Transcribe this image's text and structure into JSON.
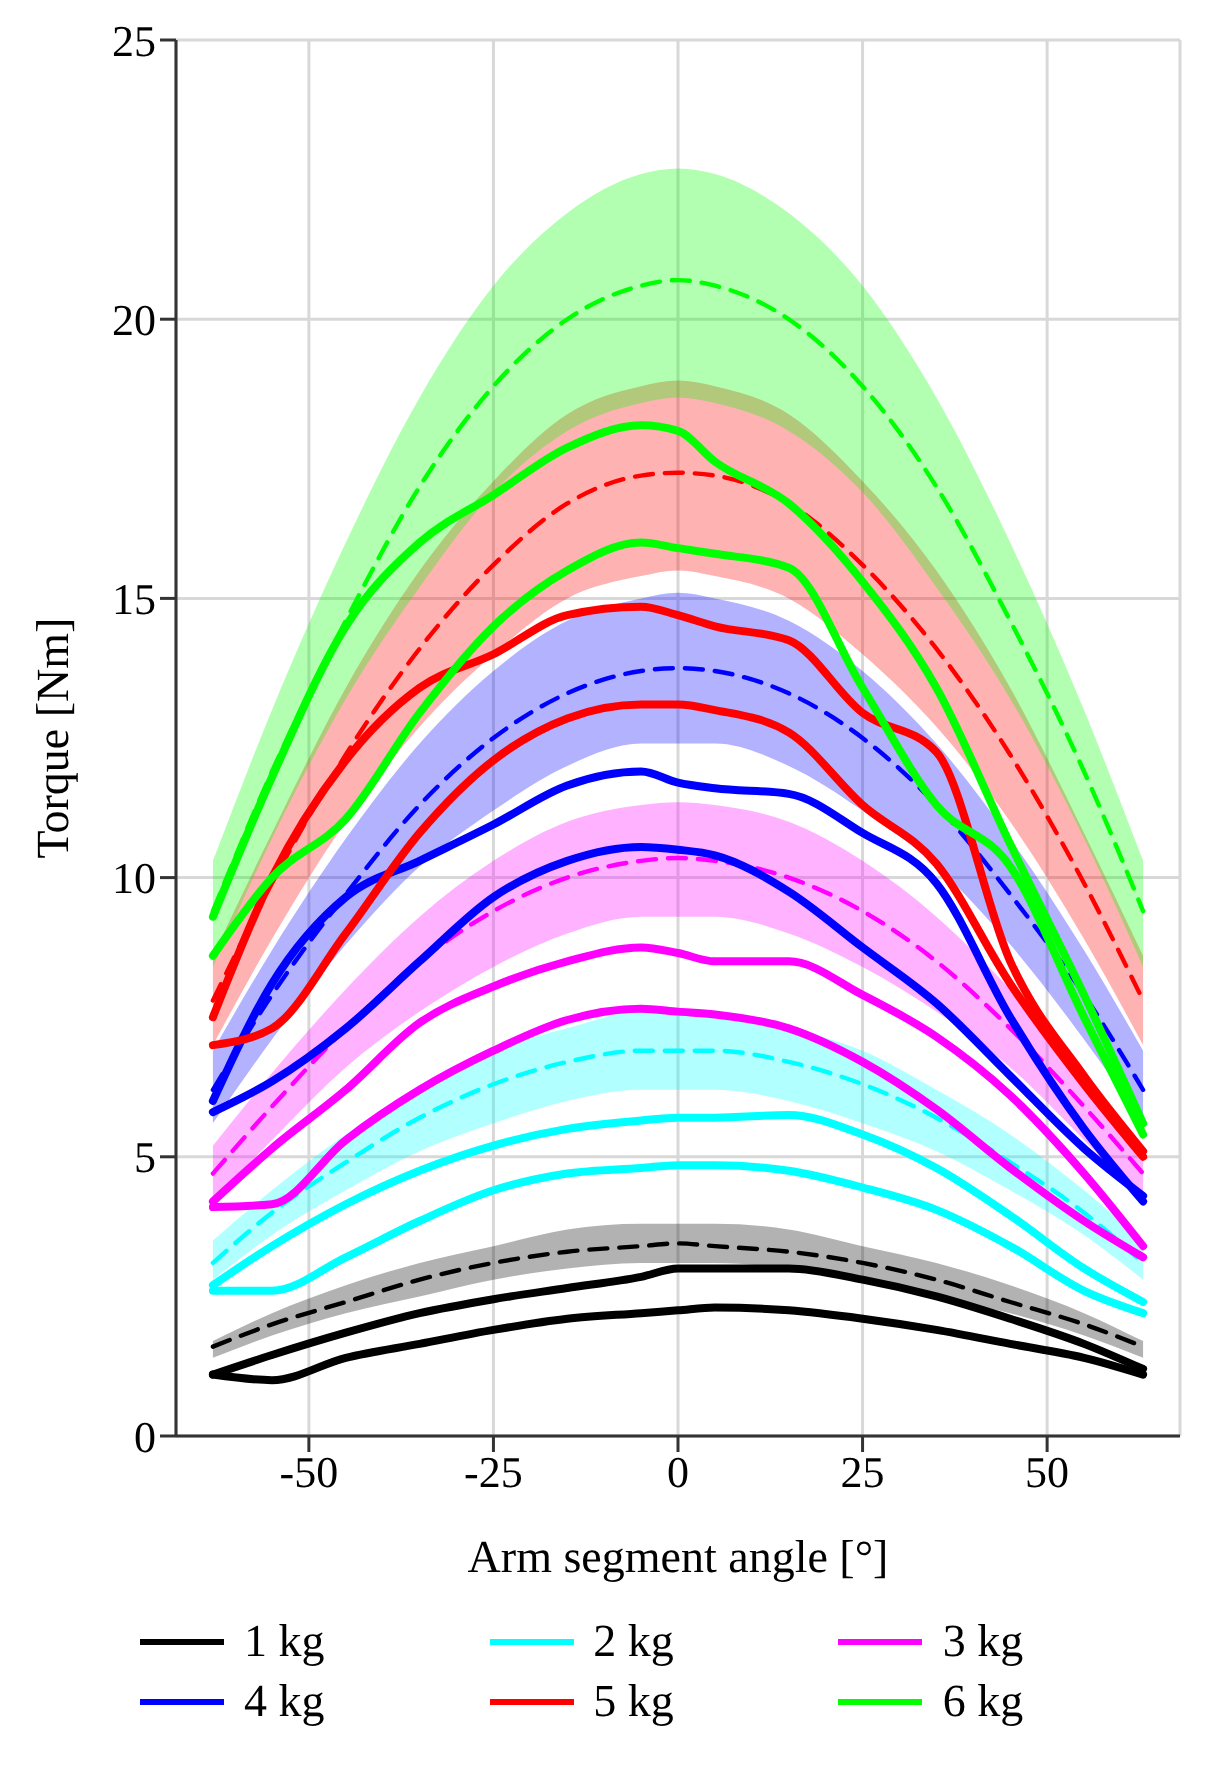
{
  "chart_data": {
    "type": "line",
    "xlabel": "Arm segment angle [°]",
    "ylabel": "Torque [Nm]",
    "xlim": [
      -68,
      68
    ],
    "xticks": [
      -50,
      -25,
      0,
      25,
      50
    ],
    "ylim": [
      0,
      25
    ],
    "yticks": [
      0,
      5,
      10,
      15,
      20,
      25
    ],
    "grid": true,
    "legend": "bottom",
    "x": [
      -63,
      -55,
      -45,
      -35,
      -25,
      -15,
      -5,
      0,
      5,
      15,
      25,
      35,
      45,
      55,
      63
    ],
    "series": [
      {
        "name": "1 kg",
        "color": "#000000",
        "line_style": "solid",
        "values": [
          1.1,
          1.45,
          1.85,
          2.2,
          2.45,
          2.65,
          2.85,
          3.0,
          3.0,
          3.0,
          2.8,
          2.5,
          2.1,
          1.65,
          1.2
        ]
      },
      {
        "color": "#000000",
        "line_style": "solid",
        "values": [
          1.1,
          1.0,
          1.4,
          1.65,
          1.9,
          2.1,
          2.2,
          2.25,
          2.3,
          2.25,
          2.1,
          1.9,
          1.65,
          1.4,
          1.1
        ]
      },
      {
        "color": "#000000",
        "line_style": "dashed",
        "values": [
          1.6,
          2.0,
          2.4,
          2.8,
          3.1,
          3.3,
          3.4,
          3.45,
          3.4,
          3.3,
          3.1,
          2.8,
          2.4,
          2.0,
          1.6
        ],
        "lower": [
          1.4,
          1.8,
          2.2,
          2.5,
          2.8,
          3.0,
          3.1,
          3.1,
          3.1,
          3.0,
          2.8,
          2.5,
          2.2,
          1.8,
          1.4
        ],
        "upper": [
          1.7,
          2.2,
          2.7,
          3.1,
          3.4,
          3.7,
          3.8,
          3.8,
          3.8,
          3.7,
          3.4,
          3.1,
          2.7,
          2.2,
          1.7
        ]
      },
      {
        "name": "2 kg",
        "color": "#00ffff",
        "line_style": "solid",
        "values": [
          2.7,
          3.4,
          4.15,
          4.75,
          5.2,
          5.5,
          5.65,
          5.7,
          5.7,
          5.75,
          5.4,
          4.8,
          3.95,
          3.0,
          2.4
        ]
      },
      {
        "color": "#00ffff",
        "line_style": "solid",
        "values": [
          2.6,
          2.6,
          3.2,
          3.85,
          4.4,
          4.7,
          4.8,
          4.85,
          4.85,
          4.75,
          4.45,
          4.05,
          3.4,
          2.6,
          2.2
        ]
      },
      {
        "color": "#00ffff",
        "line_style": "dashed",
        "values": [
          3.1,
          4.0,
          4.9,
          5.7,
          6.3,
          6.7,
          6.9,
          6.9,
          6.9,
          6.7,
          6.3,
          5.7,
          4.9,
          4.0,
          3.1
        ],
        "lower": [
          2.8,
          3.6,
          4.4,
          5.1,
          5.6,
          6.0,
          6.2,
          6.2,
          6.2,
          6.0,
          5.6,
          5.1,
          4.4,
          3.6,
          2.8
        ],
        "upper": [
          3.5,
          4.4,
          5.4,
          6.2,
          6.9,
          7.3,
          7.6,
          7.6,
          7.6,
          7.3,
          6.9,
          6.2,
          5.4,
          4.4,
          3.5
        ]
      },
      {
        "name": "3 kg",
        "color": "#ff00ff",
        "line_style": "solid",
        "values": [
          4.2,
          5.15,
          6.2,
          7.4,
          8.05,
          8.5,
          8.75,
          8.65,
          8.5,
          8.5,
          7.9,
          7.15,
          6.1,
          4.7,
          3.4
        ]
      },
      {
        "color": "#ff00ff",
        "line_style": "solid",
        "values": [
          4.1,
          4.15,
          5.3,
          6.2,
          6.9,
          7.45,
          7.65,
          7.6,
          7.55,
          7.3,
          6.7,
          5.85,
          4.8,
          3.85,
          3.2
        ]
      },
      {
        "color": "#ff00ff",
        "line_style": "dashed",
        "values": [
          4.7,
          5.9,
          7.3,
          8.5,
          9.4,
          10.0,
          10.3,
          10.35,
          10.3,
          10.0,
          9.4,
          8.5,
          7.3,
          5.9,
          4.7
        ],
        "lower": [
          4.2,
          5.3,
          6.6,
          7.6,
          8.4,
          9.0,
          9.3,
          9.3,
          9.3,
          9.0,
          8.4,
          7.6,
          6.6,
          5.3,
          4.2
        ],
        "upper": [
          5.2,
          6.5,
          8.0,
          9.3,
          10.3,
          11.0,
          11.3,
          11.35,
          11.3,
          11.0,
          10.3,
          9.3,
          8.0,
          6.5,
          5.2
        ]
      },
      {
        "name": "4 kg",
        "color": "#0000ff",
        "line_style": "solid",
        "values": [
          6.0,
          8.1,
          9.65,
          10.3,
          10.95,
          11.65,
          11.9,
          11.7,
          11.6,
          11.5,
          10.8,
          9.9,
          7.5,
          5.5,
          4.2
        ]
      },
      {
        "color": "#0000ff",
        "line_style": "solid",
        "values": [
          5.8,
          6.35,
          7.3,
          8.5,
          9.65,
          10.3,
          10.55,
          10.5,
          10.4,
          9.75,
          8.75,
          7.75,
          6.45,
          5.15,
          4.3
        ]
      },
      {
        "color": "#0000ff",
        "line_style": "dashed",
        "values": [
          6.2,
          7.9,
          9.7,
          11.3,
          12.5,
          13.3,
          13.7,
          13.75,
          13.7,
          13.3,
          12.5,
          11.3,
          9.7,
          7.9,
          6.2
        ],
        "lower": [
          5.6,
          7.1,
          8.8,
          10.2,
          11.2,
          12.0,
          12.4,
          12.4,
          12.4,
          12.0,
          11.2,
          10.2,
          8.8,
          7.1,
          5.6
        ],
        "upper": [
          6.9,
          8.7,
          10.7,
          12.4,
          13.7,
          14.6,
          15.0,
          15.1,
          15.0,
          14.6,
          13.7,
          12.4,
          10.7,
          8.7,
          6.9
        ]
      },
      {
        "name": "5 kg",
        "color": "#ff0000",
        "line_style": "solid",
        "values": [
          7.5,
          10.0,
          12.1,
          13.4,
          14.0,
          14.7,
          14.85,
          14.7,
          14.5,
          14.25,
          12.95,
          12.25,
          8.5,
          6.45,
          5.1
        ]
      },
      {
        "color": "#ff0000",
        "line_style": "solid",
        "values": [
          7.0,
          7.3,
          9.0,
          10.8,
          12.1,
          12.85,
          13.1,
          13.1,
          13.0,
          12.6,
          11.3,
          10.25,
          8.1,
          6.3,
          5.0
        ]
      },
      {
        "color": "#ff0000",
        "line_style": "dashed",
        "values": [
          7.8,
          9.9,
          12.2,
          14.1,
          15.6,
          16.7,
          17.2,
          17.25,
          17.2,
          16.7,
          15.6,
          14.1,
          12.2,
          9.9,
          7.8
        ],
        "lower": [
          7.0,
          8.9,
          11.0,
          12.7,
          14.0,
          15.0,
          15.4,
          15.5,
          15.4,
          15.0,
          14.0,
          12.7,
          11.0,
          8.9,
          7.0
        ],
        "upper": [
          8.6,
          10.8,
          13.4,
          15.5,
          17.1,
          18.3,
          18.8,
          18.9,
          18.8,
          18.3,
          17.1,
          15.5,
          13.4,
          10.8,
          8.6
        ]
      },
      {
        "name": "6 kg",
        "color": "#00ff00",
        "line_style": "solid",
        "values": [
          9.3,
          11.8,
          14.5,
          16.0,
          16.85,
          17.7,
          18.1,
          18.0,
          17.45,
          16.7,
          15.3,
          13.4,
          10.6,
          7.9,
          5.6
        ]
      },
      {
        "color": "#00ff00",
        "line_style": "solid",
        "values": [
          8.6,
          10.0,
          11.05,
          12.95,
          14.5,
          15.5,
          16.0,
          15.9,
          15.8,
          15.55,
          13.4,
          11.3,
          10.2,
          7.5,
          5.4
        ]
      },
      {
        "color": "#00ff00",
        "line_style": "dashed",
        "values": [
          9.4,
          11.9,
          14.6,
          17.0,
          18.8,
          20.0,
          20.6,
          20.7,
          20.6,
          20.0,
          18.8,
          17.0,
          14.6,
          11.9,
          9.4
        ],
        "lower": [
          8.4,
          10.7,
          13.2,
          15.2,
          16.9,
          18.0,
          18.5,
          18.6,
          18.5,
          18.0,
          16.9,
          15.2,
          13.2,
          10.7,
          8.4
        ],
        "upper": [
          10.3,
          13.0,
          16.0,
          18.6,
          20.6,
          21.9,
          22.6,
          22.7,
          22.6,
          21.9,
          20.6,
          18.6,
          16.0,
          13.0,
          10.3
        ]
      }
    ]
  }
}
